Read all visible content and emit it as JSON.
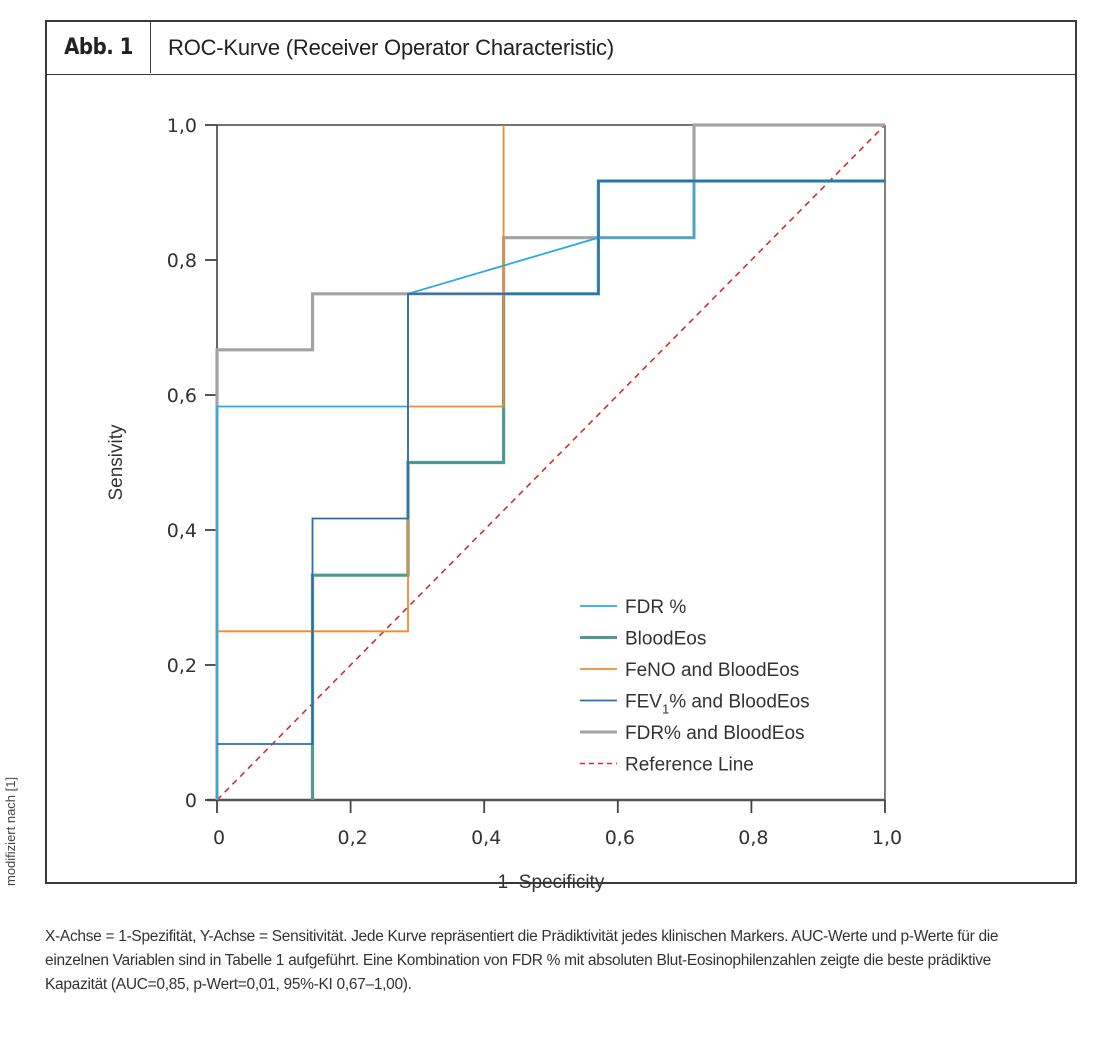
{
  "figure": {
    "label": "Abb. 1",
    "title": "ROC-Kurve (Receiver Operator Characteristic)",
    "side_note": "modifiziert nach [1]",
    "caption": "X-Achse = 1-Spezifität, Y-Achse = Sensitivität. Jede Kurve repräsentiert die Prädiktivität jedes klinischen Markers. AUC-Werte und p-Werte für die einzelnen Variablen sind in Tabelle 1 aufgeführt. Eine Kombination von FDR % mit absoluten Blut-Eosinophilenzahlen zeigte die beste prädiktive Kapazität (AUC=0,85, p-Wert=0,01, 95%-KI 0,67–1,00)."
  },
  "chart_data": {
    "type": "line",
    "title": "ROC-Kurve (Receiver Operator Characteristic)",
    "xlabel": "1–Specificity",
    "ylabel": "Sensivity",
    "xlim": [
      0,
      1
    ],
    "ylim": [
      0,
      1
    ],
    "grid": false,
    "legend_position": "bottom-right",
    "x_ticks": [
      0,
      0.2,
      0.4,
      0.6,
      0.8,
      1.0
    ],
    "x_tick_labels": [
      "0",
      "0,2",
      "0,4",
      "0,6",
      "0,8",
      "1,0"
    ],
    "y_ticks": [
      0,
      0.2,
      0.4,
      0.6,
      0.8,
      1.0
    ],
    "y_tick_labels": [
      "0",
      "0,2",
      "0,4",
      "0,6",
      "0,8",
      "1,0"
    ],
    "series": [
      {
        "name": "FDR %",
        "color": "#29abe2",
        "stroke_width": 1.8,
        "x": [
          0,
          0,
          0.286,
          0.286,
          0.571,
          0.714,
          0.714,
          1.0
        ],
        "y": [
          0,
          0.583,
          0.583,
          0.75,
          0.833,
          0.833,
          0.917,
          0.917
        ]
      },
      {
        "name": "BloodEos",
        "color": "#4e9a8f",
        "stroke_width": 3.2,
        "x": [
          0.143,
          0.143,
          0.286,
          0.286,
          0.429,
          0.429,
          0.571,
          0.571,
          1.0
        ],
        "y": [
          0,
          0.333,
          0.333,
          0.5,
          0.5,
          0.75,
          0.75,
          0.917,
          0.917
        ]
      },
      {
        "name": "FeNO and BloodEos",
        "color": "#f08a2c",
        "stroke_width": 1.8,
        "x": [
          0,
          0.286,
          0.286,
          0.429,
          0.429
        ],
        "y": [
          0.25,
          0.25,
          0.583,
          0.583,
          1.0
        ]
      },
      {
        "name": "FEV1% and BloodEos",
        "label_main": "FEV",
        "label_sub": "1",
        "label_rest": "% and BloodEos",
        "color": "#2a6db5",
        "stroke_width": 1.8,
        "x": [
          0,
          0.143,
          0.143,
          0.286,
          0.286,
          0.571,
          0.571,
          1.0
        ],
        "y": [
          0.083,
          0.083,
          0.417,
          0.417,
          0.75,
          0.75,
          0.917,
          0.917
        ]
      },
      {
        "name": "FDR% and BloodEos",
        "color": "#a3a3a3",
        "stroke_width": 3.2,
        "x": [
          0,
          0,
          0.143,
          0.143,
          0.429,
          0.429,
          0.714,
          0.714,
          1.0
        ],
        "y": [
          0,
          0.667,
          0.667,
          0.75,
          0.75,
          0.833,
          0.833,
          1.0,
          1.0
        ]
      },
      {
        "name": "Reference Line",
        "color": "#c9302c",
        "stroke_width": 1.6,
        "dashed": true,
        "x": [
          0,
          1
        ],
        "y": [
          0,
          1
        ]
      }
    ]
  }
}
